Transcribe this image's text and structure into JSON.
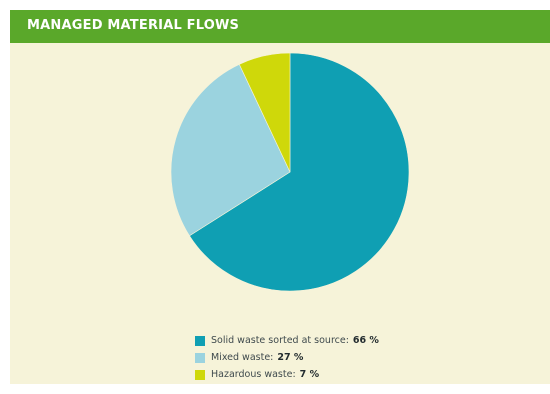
{
  "header": {
    "title": "MANAGED MATERIAL FLOWS",
    "color": "#5aa82a"
  },
  "chart_data": {
    "type": "pie",
    "title": "MANAGED MATERIAL FLOWS",
    "unit": "%",
    "categories": [
      "Solid waste sorted at source",
      "Mixed waste",
      "Hazardous waste"
    ],
    "values": [
      66,
      27,
      7
    ],
    "colors": [
      "#0f9fb3",
      "#9bd3df",
      "#cfd80a"
    ],
    "legend_position": "bottom",
    "legend": [
      {
        "label": "Solid waste sorted at source:",
        "value": "66 %"
      },
      {
        "label": "Mixed waste:",
        "value": "27 %"
      },
      {
        "label": "Hazardous waste:",
        "value": "7 %"
      }
    ]
  }
}
